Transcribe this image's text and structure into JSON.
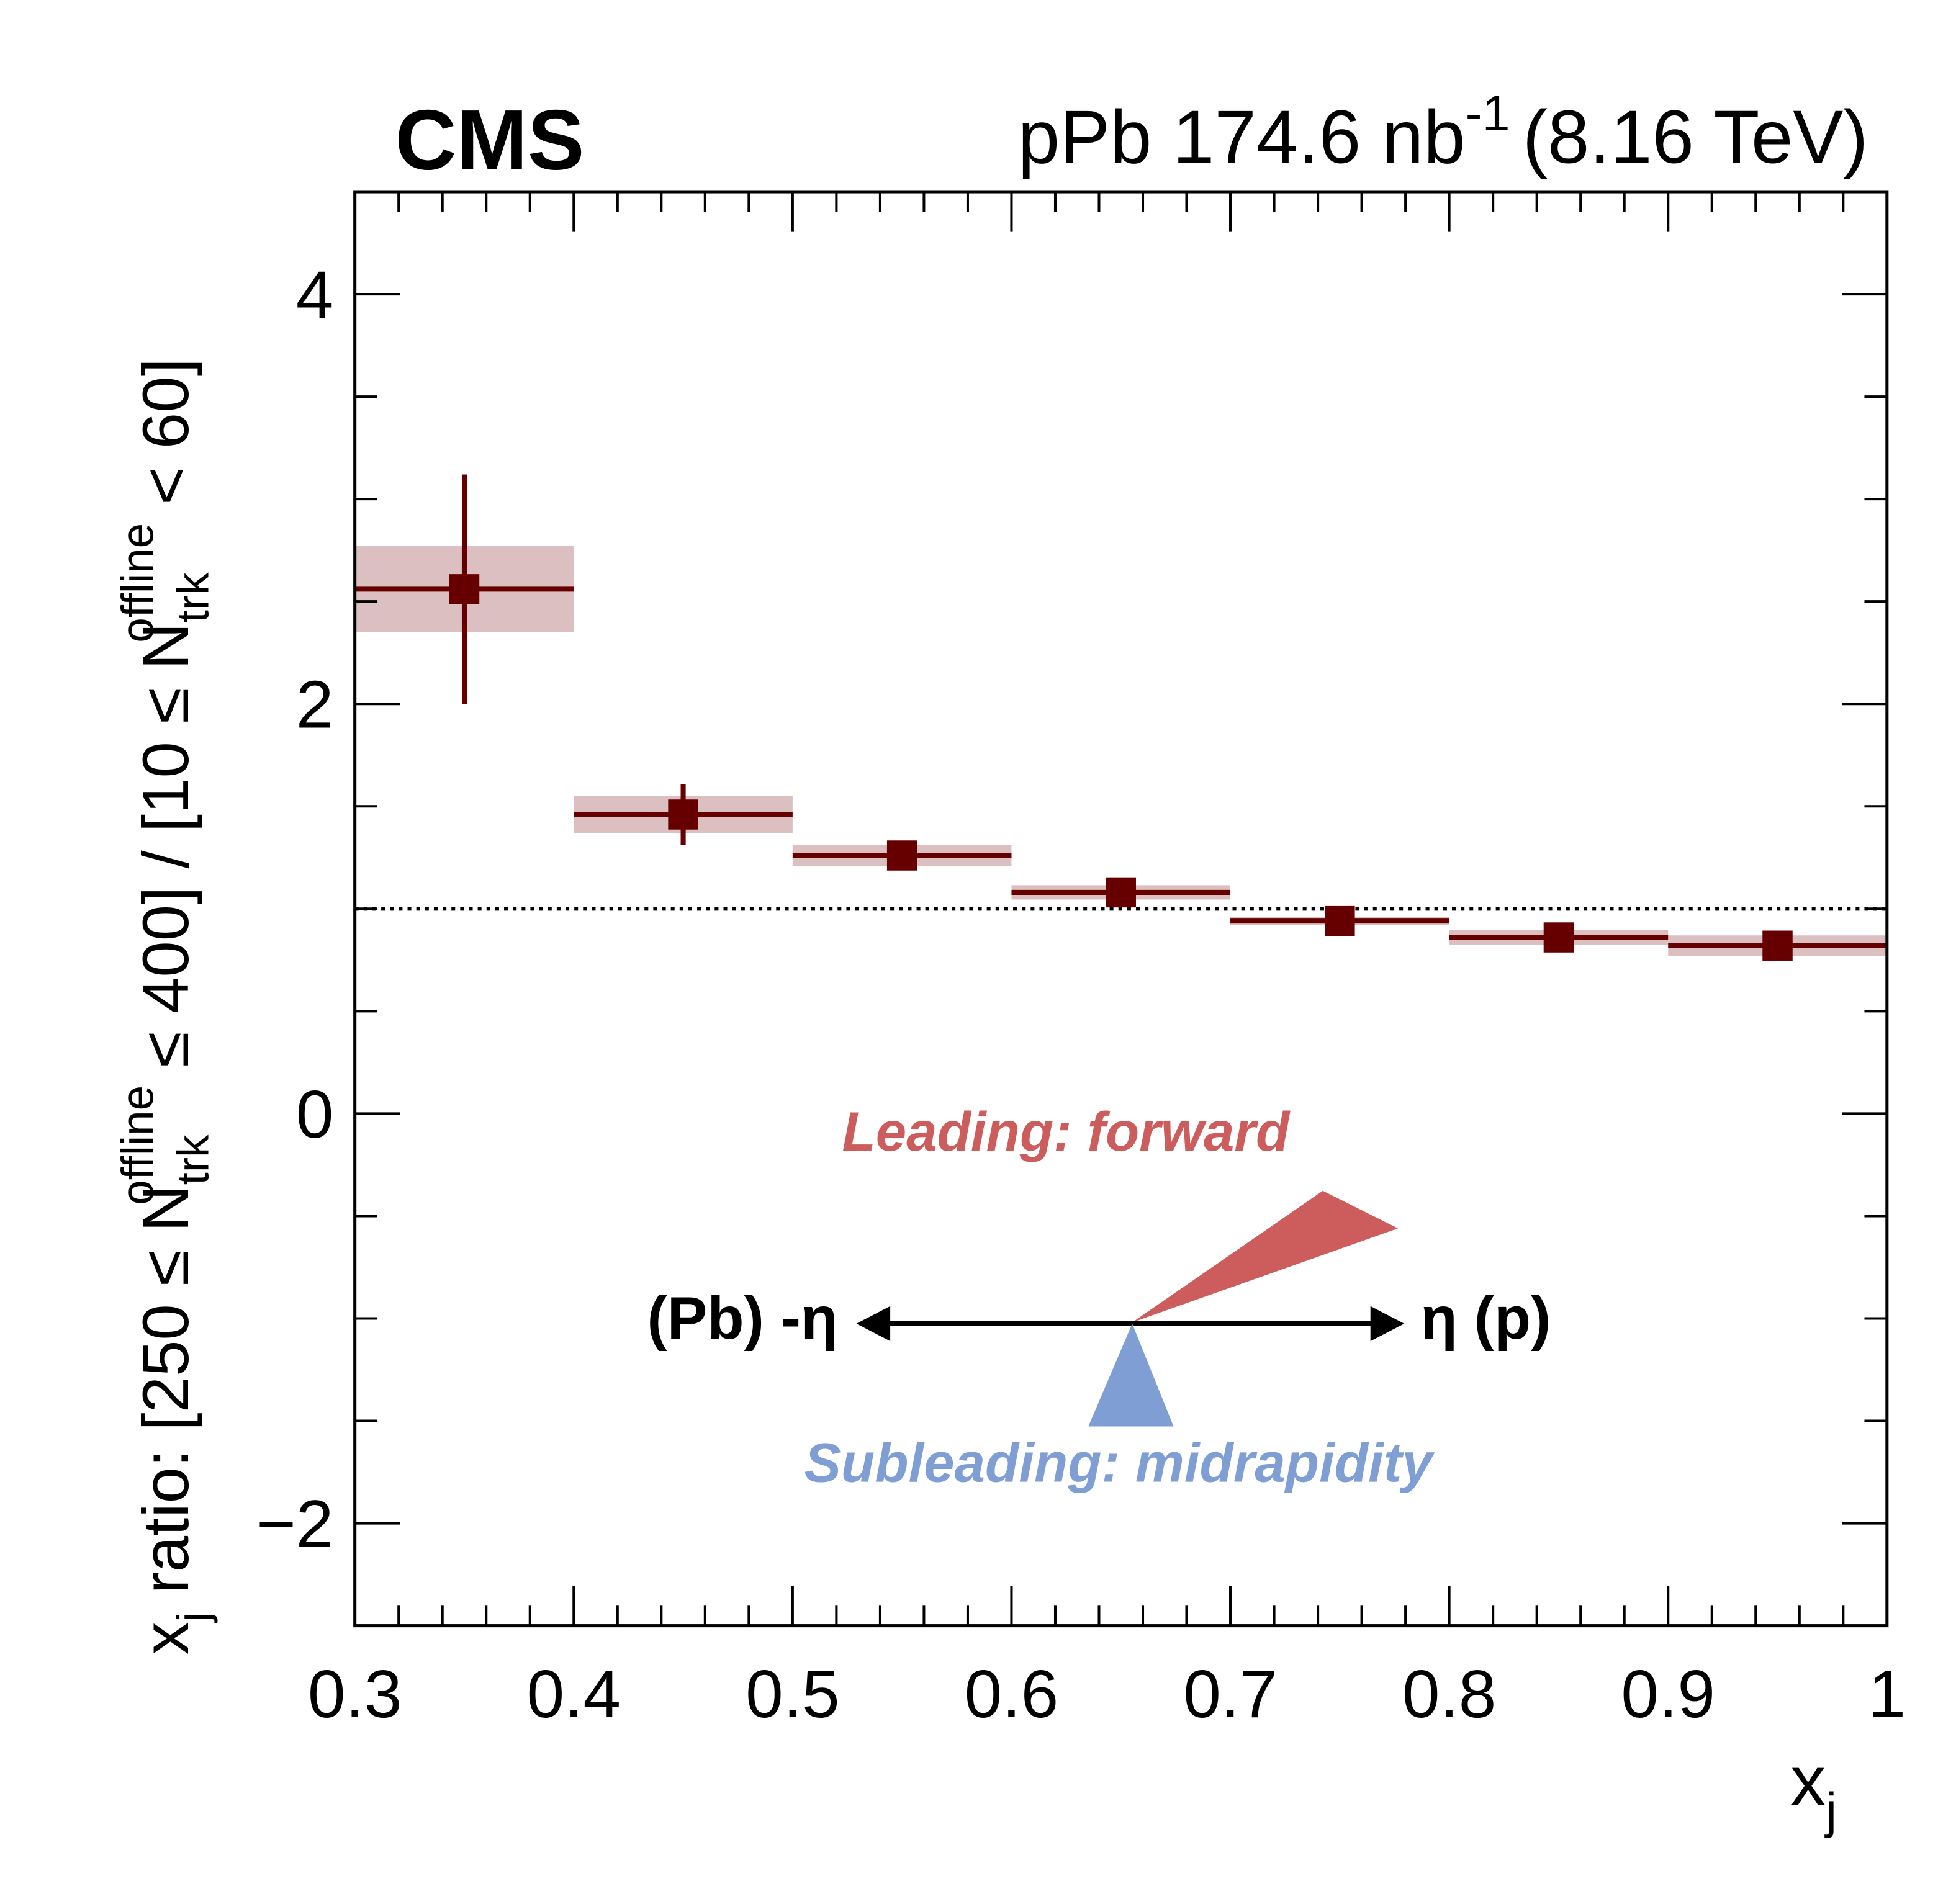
{
  "header": {
    "experiment": "CMS",
    "lumi_prefix": "pPb 174.6 nb",
    "lumi_exp": "-1",
    "energy": "(8.16 TeV)"
  },
  "chart_data": {
    "type": "scatter",
    "xlabel": "x",
    "xlabel_sub": "j",
    "ylabel_parts": {
      "p1": "x",
      "p1_sub": "j",
      "p2": " ratio: [250 ≤ N",
      "p2_sub": "trk",
      "p2_sup": "offline",
      "p3": " ≤ 400] / [10 ≤ N",
      "p3_sub": "trk",
      "p3_sup": "offline",
      "p4": " < 60]"
    },
    "xlim": [
      0.3,
      1.0
    ],
    "ylim": [
      -2.5,
      4.5
    ],
    "x_ticks": [
      "0.3",
      "0.4",
      "0.5",
      "0.6",
      "0.7",
      "0.8",
      "0.9",
      "1"
    ],
    "y_ticks": [
      "−2",
      "0",
      "2",
      "4"
    ],
    "reference_line": 1.0,
    "series": [
      {
        "color": "#660000",
        "sys_color": "#dbbfc1",
        "bins": [
          [
            0.3,
            0.4
          ],
          [
            0.4,
            0.5
          ],
          [
            0.5,
            0.6
          ],
          [
            0.6,
            0.7
          ],
          [
            0.7,
            0.8
          ],
          [
            0.8,
            0.9
          ],
          [
            0.9,
            1.0
          ]
        ],
        "x": [
          0.35,
          0.45,
          0.55,
          0.65,
          0.75,
          0.85,
          0.95
        ],
        "y": [
          2.56,
          1.46,
          1.26,
          1.08,
          0.94,
          0.86,
          0.82
        ],
        "stat_err": [
          0.56,
          0.15,
          0.07,
          0.02,
          0.02,
          0.02,
          0.02
        ],
        "sys_err": [
          0.21,
          0.09,
          0.05,
          0.035,
          0.02,
          0.035,
          0.05
        ]
      }
    ],
    "annotations": {
      "leading": "Leading: forward",
      "subleading": "Subleading: midrapidity",
      "left_arrow": "(Pb) -η",
      "right_arrow": "η (p)",
      "leading_color": "#cd5c5c",
      "subleading_color": "#7f9fd4"
    }
  }
}
